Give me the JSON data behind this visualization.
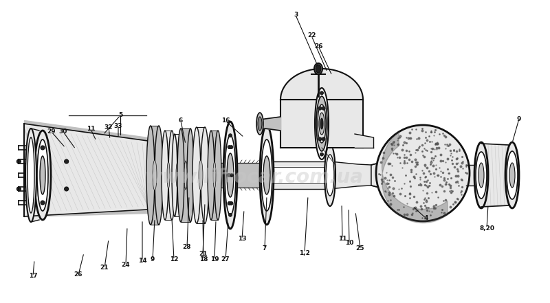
{
  "background_color": "#ffffff",
  "watermark_text": "www.liftocar.com.ua",
  "watermark_color": "#c8c8c8",
  "watermark_alpha": 0.45,
  "fig_width": 8.0,
  "fig_height": 4.41,
  "dpi": 100,
  "line_color": "#111111",
  "fill_light": "#e8e8e8",
  "fill_mid": "#c0c0c0",
  "fill_dark": "#888888",
  "fill_black": "#222222",
  "labels": [
    [
      "3",
      430,
      22
    ],
    [
      "22",
      453,
      52
    ],
    [
      "26",
      463,
      67
    ],
    [
      "5",
      175,
      168
    ],
    [
      "29",
      75,
      192
    ],
    [
      "30",
      92,
      192
    ],
    [
      "11",
      132,
      188
    ],
    [
      "32",
      158,
      185
    ],
    [
      "33",
      172,
      183
    ],
    [
      "6",
      263,
      176
    ],
    [
      "16",
      328,
      176
    ],
    [
      "9",
      745,
      173
    ],
    [
      "8,20",
      700,
      332
    ],
    [
      "4",
      610,
      318
    ],
    [
      "25",
      524,
      362
    ],
    [
      "10",
      508,
      354
    ],
    [
      "11",
      498,
      348
    ],
    [
      "1,2",
      443,
      368
    ],
    [
      "7",
      385,
      362
    ],
    [
      "13",
      352,
      348
    ],
    [
      "28",
      272,
      360
    ],
    [
      "21",
      295,
      370
    ],
    [
      "27",
      328,
      378
    ],
    [
      "19",
      312,
      378
    ],
    [
      "18",
      296,
      378
    ],
    [
      "12",
      253,
      378
    ],
    [
      "9",
      222,
      378
    ],
    [
      "14",
      207,
      380
    ],
    [
      "24",
      183,
      385
    ],
    [
      "21",
      152,
      390
    ],
    [
      "26",
      114,
      400
    ],
    [
      "17",
      48,
      402
    ]
  ]
}
